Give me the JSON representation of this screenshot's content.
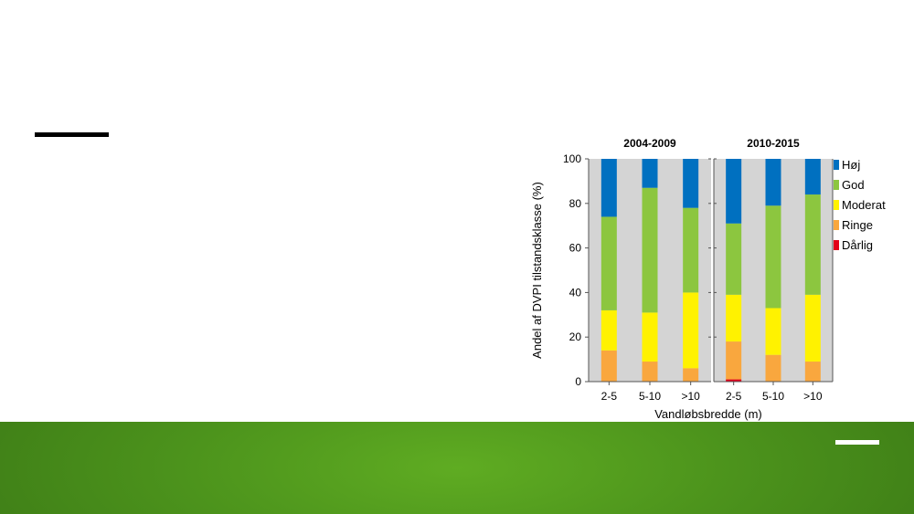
{
  "chart_data": {
    "type": "bar",
    "stacked": true,
    "percent_stacked": true,
    "ylabel": "Andel af DVPI tilstandsklasse (%)",
    "xlabel": "Vandløbsbredde (m)",
    "ylim": [
      0,
      100
    ],
    "yticks": [
      "0",
      "20",
      "40",
      "60",
      "80",
      "100"
    ],
    "categories": [
      "2-5",
      "5-10",
      ">10"
    ],
    "grid": false,
    "legend_position": "right",
    "legend": [
      "Høj",
      "God",
      "Moderat",
      "Ringe",
      "Dårlig"
    ],
    "colors": {
      "Høj": "#0070c0",
      "God": "#8cc63f",
      "Moderat": "#fff200",
      "Ringe": "#f9a73e",
      "Dårlig": "#e2001a",
      "background": "#d4d4d4"
    },
    "panels": [
      {
        "title": "2004-2009",
        "series": [
          {
            "name": "Dårlig",
            "values": [
              0,
              0,
              0
            ]
          },
          {
            "name": "Ringe",
            "values": [
              14,
              9,
              6
            ]
          },
          {
            "name": "Moderat",
            "values": [
              18,
              22,
              34
            ]
          },
          {
            "name": "God",
            "values": [
              42,
              56,
              38
            ]
          },
          {
            "name": "Høj",
            "values": [
              26,
              13,
              22
            ]
          }
        ]
      },
      {
        "title": "2010-2015",
        "series": [
          {
            "name": "Dårlig",
            "values": [
              1,
              0,
              0
            ]
          },
          {
            "name": "Ringe",
            "values": [
              17,
              12,
              9
            ]
          },
          {
            "name": "Moderat",
            "values": [
              21,
              21,
              30
            ]
          },
          {
            "name": "God",
            "values": [
              32,
              46,
              45
            ]
          },
          {
            "name": "Høj",
            "values": [
              29,
              21,
              16
            ]
          }
        ]
      }
    ]
  }
}
